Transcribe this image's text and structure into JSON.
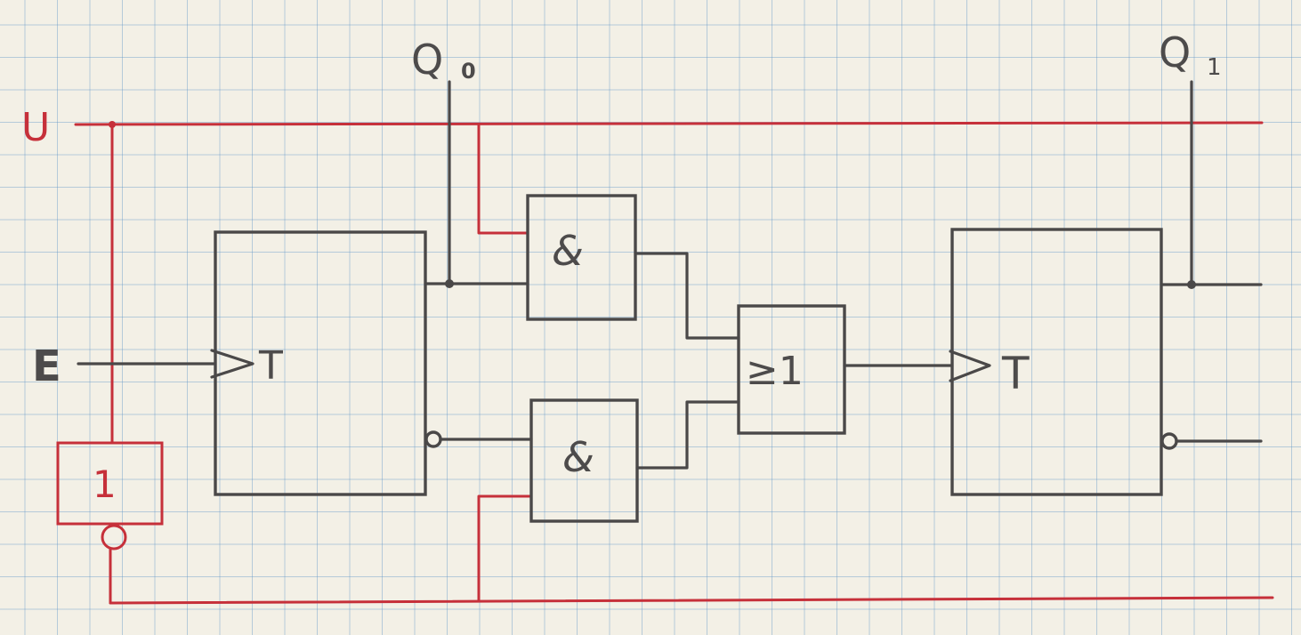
{
  "labels": {
    "supply": "U",
    "input": "E",
    "q0": "Q",
    "q0_sub": "0",
    "q1": "Q",
    "q1_sub": "1"
  },
  "gates": {
    "ff1_clock": "T",
    "ff2_clock": "T",
    "and_upper": "&",
    "and_lower": "&",
    "or_gate": "≥1",
    "not_gate": "1"
  },
  "colors": {
    "pencil": "#4a4848",
    "red_ink": "#c6303a",
    "grid": "#6096c8",
    "paper": "#f3f0e6"
  }
}
